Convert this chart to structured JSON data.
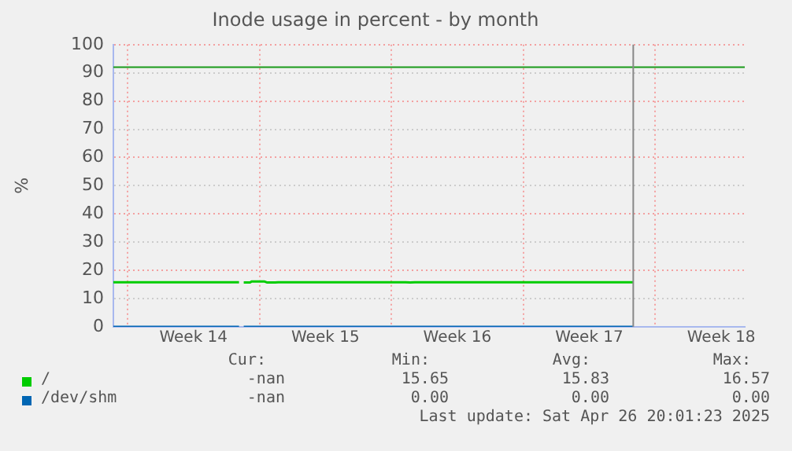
{
  "chart_data": {
    "type": "line",
    "title": "Inode usage in percent - by month",
    "ylabel": "%",
    "x": [
      "2025-03-30T06:00",
      "2025-04-02T00:00",
      "2025-04-05T22:00",
      "2025-04-06T00:00",
      "2025-04-06T04:00",
      "2025-04-06T12:00",
      "2025-04-06T14:00",
      "2025-04-07T06:00",
      "2025-04-07T10:00",
      "2025-04-07T20:00",
      "2025-04-08T00:00",
      "2025-04-14T18:00",
      "2025-04-15T00:00",
      "2025-04-15T06:00",
      "2025-04-26T20:00"
    ],
    "series": [
      {
        "name": "/",
        "color": "#00cc00",
        "values": [
          15.8,
          15.8,
          15.8,
          null,
          15.7,
          15.7,
          16.1,
          16.1,
          15.7,
          15.7,
          15.8,
          15.8,
          15.7,
          15.8,
          15.8
        ]
      },
      {
        "name": "/dev/shm",
        "color": "#0066b3",
        "values": [
          0,
          0,
          0,
          null,
          0,
          0,
          0,
          0,
          0,
          0,
          0,
          0,
          0,
          0,
          0
        ]
      }
    ],
    "xlim": [
      "2025-03-30T06:00",
      "2025-05-02T18:00"
    ],
    "xticks": [
      {
        "value": "2025-03-31",
        "label": null
      },
      {
        "value": "2025-04-03T12:00",
        "label": "Week 14"
      },
      {
        "value": "2025-04-07",
        "label": null
      },
      {
        "value": "2025-04-10T12:00",
        "label": "Week 15"
      },
      {
        "value": "2025-04-14",
        "label": null
      },
      {
        "value": "2025-04-17T12:00",
        "label": "Week 16"
      },
      {
        "value": "2025-04-21",
        "label": null
      },
      {
        "value": "2025-04-24T12:00",
        "label": "Week 17"
      },
      {
        "value": "2025-04-28",
        "label": null
      },
      {
        "value": "2025-05-01T12:00",
        "label": "Week 18"
      }
    ],
    "ylim": [
      0,
      100
    ],
    "yticks": [
      0,
      10,
      20,
      30,
      40,
      50,
      60,
      70,
      80,
      90,
      100
    ],
    "grid": true,
    "legend": "bottom",
    "marker": "none",
    "line_style": "solid",
    "ref_lines": [
      {
        "axis": "y",
        "value": 92,
        "color": "#1a9a1a"
      },
      {
        "axis": "x",
        "value": "2025-04-26T20:00",
        "color": "#888888"
      }
    ],
    "annotations": [
      "Cur:",
      "Min:",
      "Avg:",
      "Max:",
      "-nan",
      "15.65",
      "15.83",
      "16.57",
      "-nan",
      "0.00",
      "0.00",
      "0.00",
      "Last update: Sat Apr 26 20:01:23 2025"
    ]
  }
}
